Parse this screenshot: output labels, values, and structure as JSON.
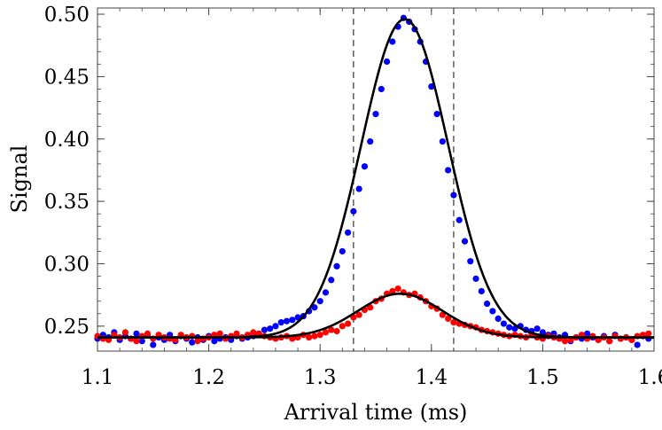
{
  "chart_data": {
    "type": "scatter",
    "xlabel": "Arrival time (ms)",
    "ylabel": "Signal",
    "xlim": [
      1.1,
      1.6
    ],
    "ylim": [
      0.23,
      0.505
    ],
    "x_ticks": [
      "1.1",
      "1.2",
      "1.3",
      "1.4",
      "1.5",
      "1.6"
    ],
    "y_ticks": [
      "0.25",
      "0.30",
      "0.35",
      "0.40",
      "0.45",
      "0.50"
    ],
    "grid": false,
    "legend": "none",
    "vertical_dashed_lines": [
      1.33,
      1.42
    ],
    "series": [
      {
        "color": "#0000ff",
        "fit_color": "#000000",
        "fit": {
          "baseline": 0.241,
          "amplitude": 0.255,
          "center": 1.376,
          "sigma": 0.039
        },
        "points": [
          [
            1.1,
            0.24
          ],
          [
            1.105,
            0.243
          ],
          [
            1.11,
            0.241
          ],
          [
            1.115,
            0.245
          ],
          [
            1.12,
            0.239
          ],
          [
            1.125,
            0.242
          ],
          [
            1.13,
            0.24
          ],
          [
            1.135,
            0.244
          ],
          [
            1.14,
            0.238
          ],
          [
            1.145,
            0.243
          ],
          [
            1.15,
            0.235
          ],
          [
            1.155,
            0.241
          ],
          [
            1.16,
            0.239
          ],
          [
            1.165,
            0.243
          ],
          [
            1.17,
            0.238
          ],
          [
            1.175,
            0.242
          ],
          [
            1.18,
            0.24
          ],
          [
            1.185,
            0.237
          ],
          [
            1.19,
            0.241
          ],
          [
            1.195,
            0.239
          ],
          [
            1.2,
            0.242
          ],
          [
            1.205,
            0.238
          ],
          [
            1.21,
            0.24
          ],
          [
            1.215,
            0.241
          ],
          [
            1.22,
            0.239
          ],
          [
            1.225,
            0.242
          ],
          [
            1.23,
            0.24
          ],
          [
            1.235,
            0.241
          ],
          [
            1.24,
            0.242
          ],
          [
            1.245,
            0.244
          ],
          [
            1.25,
            0.247
          ],
          [
            1.255,
            0.248
          ],
          [
            1.26,
            0.25
          ],
          [
            1.265,
            0.253
          ],
          [
            1.27,
            0.254
          ],
          [
            1.275,
            0.255
          ],
          [
            1.28,
            0.257
          ],
          [
            1.285,
            0.258
          ],
          [
            1.29,
            0.262
          ],
          [
            1.295,
            0.265
          ],
          [
            1.3,
            0.27
          ],
          [
            1.305,
            0.277
          ],
          [
            1.31,
            0.287
          ],
          [
            1.315,
            0.298
          ],
          [
            1.32,
            0.31
          ],
          [
            1.325,
            0.325
          ],
          [
            1.33,
            0.342
          ],
          [
            1.335,
            0.36
          ],
          [
            1.34,
            0.378
          ],
          [
            1.345,
            0.398
          ],
          [
            1.35,
            0.42
          ],
          [
            1.355,
            0.44
          ],
          [
            1.36,
            0.462
          ],
          [
            1.365,
            0.478
          ],
          [
            1.37,
            0.49
          ],
          [
            1.375,
            0.497
          ],
          [
            1.38,
            0.494
          ],
          [
            1.385,
            0.488
          ],
          [
            1.39,
            0.478
          ],
          [
            1.395,
            0.462
          ],
          [
            1.4,
            0.442
          ],
          [
            1.405,
            0.42
          ],
          [
            1.41,
            0.398
          ],
          [
            1.415,
            0.375
          ],
          [
            1.42,
            0.355
          ],
          [
            1.425,
            0.335
          ],
          [
            1.43,
            0.318
          ],
          [
            1.435,
            0.302
          ],
          [
            1.44,
            0.288
          ],
          [
            1.445,
            0.278
          ],
          [
            1.45,
            0.268
          ],
          [
            1.455,
            0.262
          ],
          [
            1.46,
            0.256
          ],
          [
            1.465,
            0.252
          ],
          [
            1.47,
            0.249
          ],
          [
            1.475,
            0.248
          ],
          [
            1.48,
            0.25
          ],
          [
            1.485,
            0.247
          ],
          [
            1.49,
            0.246
          ],
          [
            1.495,
            0.248
          ],
          [
            1.5,
            0.245
          ],
          [
            1.505,
            0.243
          ],
          [
            1.51,
            0.244
          ],
          [
            1.515,
            0.241
          ],
          [
            1.52,
            0.243
          ],
          [
            1.525,
            0.238
          ],
          [
            1.53,
            0.241
          ],
          [
            1.535,
            0.24
          ],
          [
            1.54,
            0.244
          ],
          [
            1.545,
            0.241
          ],
          [
            1.55,
            0.239
          ],
          [
            1.555,
            0.242
          ],
          [
            1.56,
            0.238
          ],
          [
            1.565,
            0.243
          ],
          [
            1.57,
            0.24
          ],
          [
            1.575,
            0.241
          ],
          [
            1.58,
            0.239
          ],
          [
            1.585,
            0.235
          ],
          [
            1.59,
            0.242
          ],
          [
            1.595,
            0.24
          ]
        ]
      },
      {
        "color": "#ff0000",
        "fit_color": "#000000",
        "fit": {
          "baseline": 0.241,
          "amplitude": 0.035,
          "center": 1.372,
          "sigma": 0.038
        },
        "points": [
          [
            1.1,
            0.242
          ],
          [
            1.105,
            0.24
          ],
          [
            1.11,
            0.239
          ],
          [
            1.115,
            0.243
          ],
          [
            1.12,
            0.241
          ],
          [
            1.125,
            0.245
          ],
          [
            1.13,
            0.24
          ],
          [
            1.135,
            0.238
          ],
          [
            1.14,
            0.242
          ],
          [
            1.145,
            0.244
          ],
          [
            1.15,
            0.24
          ],
          [
            1.155,
            0.243
          ],
          [
            1.16,
            0.241
          ],
          [
            1.165,
            0.24
          ],
          [
            1.17,
            0.239
          ],
          [
            1.175,
            0.243
          ],
          [
            1.18,
            0.241
          ],
          [
            1.185,
            0.242
          ],
          [
            1.19,
            0.238
          ],
          [
            1.195,
            0.24
          ],
          [
            1.2,
            0.241
          ],
          [
            1.205,
            0.243
          ],
          [
            1.21,
            0.244
          ],
          [
            1.215,
            0.24
          ],
          [
            1.22,
            0.242
          ],
          [
            1.225,
            0.244
          ],
          [
            1.23,
            0.241
          ],
          [
            1.235,
            0.243
          ],
          [
            1.24,
            0.245
          ],
          [
            1.245,
            0.244
          ],
          [
            1.25,
            0.242
          ],
          [
            1.255,
            0.241
          ],
          [
            1.26,
            0.24
          ],
          [
            1.265,
            0.241
          ],
          [
            1.27,
            0.242
          ],
          [
            1.275,
            0.24
          ],
          [
            1.28,
            0.241
          ],
          [
            1.285,
            0.243
          ],
          [
            1.29,
            0.241
          ],
          [
            1.295,
            0.242
          ],
          [
            1.3,
            0.243
          ],
          [
            1.305,
            0.245
          ],
          [
            1.31,
            0.247
          ],
          [
            1.315,
            0.246
          ],
          [
            1.32,
            0.25
          ],
          [
            1.325,
            0.252
          ],
          [
            1.33,
            0.257
          ],
          [
            1.335,
            0.259
          ],
          [
            1.34,
            0.263
          ],
          [
            1.345,
            0.265
          ],
          [
            1.35,
            0.27
          ],
          [
            1.355,
            0.272
          ],
          [
            1.36,
            0.276
          ],
          [
            1.365,
            0.278
          ],
          [
            1.37,
            0.28
          ],
          [
            1.375,
            0.277
          ],
          [
            1.38,
            0.275
          ],
          [
            1.385,
            0.276
          ],
          [
            1.39,
            0.273
          ],
          [
            1.395,
            0.27
          ],
          [
            1.4,
            0.266
          ],
          [
            1.405,
            0.264
          ],
          [
            1.41,
            0.259
          ],
          [
            1.415,
            0.256
          ],
          [
            1.42,
            0.253
          ],
          [
            1.425,
            0.252
          ],
          [
            1.43,
            0.251
          ],
          [
            1.435,
            0.25
          ],
          [
            1.44,
            0.249
          ],
          [
            1.445,
            0.247
          ],
          [
            1.45,
            0.246
          ],
          [
            1.455,
            0.245
          ],
          [
            1.46,
            0.244
          ],
          [
            1.465,
            0.243
          ],
          [
            1.47,
            0.242
          ],
          [
            1.475,
            0.243
          ],
          [
            1.48,
            0.242
          ],
          [
            1.485,
            0.241
          ],
          [
            1.49,
            0.243
          ],
          [
            1.495,
            0.241
          ],
          [
            1.5,
            0.24
          ],
          [
            1.505,
            0.242
          ],
          [
            1.51,
            0.241
          ],
          [
            1.515,
            0.24
          ],
          [
            1.52,
            0.238
          ],
          [
            1.525,
            0.239
          ],
          [
            1.53,
            0.241
          ],
          [
            1.535,
            0.243
          ],
          [
            1.54,
            0.24
          ],
          [
            1.545,
            0.242
          ],
          [
            1.55,
            0.239
          ],
          [
            1.555,
            0.241
          ],
          [
            1.56,
            0.238
          ],
          [
            1.565,
            0.242
          ],
          [
            1.57,
            0.24
          ],
          [
            1.575,
            0.241
          ],
          [
            1.58,
            0.239
          ],
          [
            1.585,
            0.242
          ],
          [
            1.59,
            0.243
          ],
          [
            1.595,
            0.244
          ]
        ]
      }
    ]
  }
}
